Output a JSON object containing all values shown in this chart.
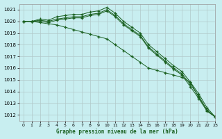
{
  "title": "Graphe pression niveau de la mer (hPa)",
  "bg_color": "#c8eef0",
  "grid_color": "#b0c8c8",
  "line_color": "#1a6020",
  "xlim": [
    -0.5,
    23
  ],
  "ylim": [
    1011.5,
    1021.5
  ],
  "yticks": [
    1012,
    1013,
    1014,
    1015,
    1016,
    1017,
    1018,
    1019,
    1020,
    1021
  ],
  "xticks": [
    0,
    1,
    2,
    3,
    4,
    5,
    6,
    7,
    8,
    9,
    10,
    11,
    12,
    13,
    14,
    15,
    16,
    17,
    18,
    19,
    20,
    21,
    22,
    23
  ],
  "series": [
    [
      1020.0,
      1020.0,
      1020.1,
      1020.0,
      1020.2,
      1020.3,
      1020.4,
      1020.4,
      1020.6,
      1020.7,
      1021.0,
      1020.5,
      1019.8,
      1019.3,
      1018.8,
      1017.8,
      1017.2,
      1016.6,
      1016.0,
      1015.5,
      1014.6,
      1013.6,
      1012.4,
      1011.8
    ],
    [
      1020.0,
      1020.0,
      1020.0,
      1019.9,
      1020.1,
      1020.2,
      1020.3,
      1020.3,
      1020.5,
      1020.6,
      1020.9,
      1020.4,
      1019.7,
      1019.2,
      1018.7,
      1017.7,
      1017.1,
      1016.5,
      1015.9,
      1015.4,
      1014.4,
      1013.4,
      1012.3,
      1011.8
    ],
    [
      1020.0,
      1020.0,
      1019.9,
      1019.8,
      1019.7,
      1019.5,
      1019.3,
      1019.1,
      1018.9,
      1018.7,
      1018.5,
      1018.0,
      1017.5,
      1017.0,
      1016.5,
      1016.0,
      1015.8,
      1015.6,
      1015.4,
      1015.2,
      1014.8,
      1013.5,
      1012.4,
      1011.8
    ],
    [
      1020.0,
      1020.0,
      1020.2,
      1020.1,
      1020.4,
      1020.5,
      1020.6,
      1020.6,
      1020.8,
      1020.9,
      1021.2,
      1020.7,
      1020.0,
      1019.5,
      1019.0,
      1018.0,
      1017.4,
      1016.8,
      1016.2,
      1015.7,
      1014.8,
      1013.8,
      1012.6,
      1011.8
    ]
  ]
}
